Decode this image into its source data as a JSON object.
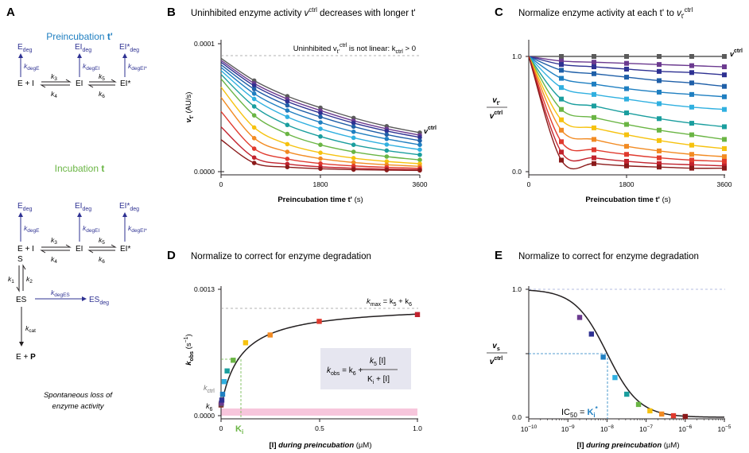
{
  "panels": {
    "A": {
      "label": "A"
    },
    "B": {
      "label": "B",
      "title": "Uninhibited enzyme activity ",
      "title_v": "v",
      "title_sup": "ctrl",
      "title_end": " decreases with longer t'"
    },
    "C": {
      "label": "C",
      "title": "Normalize enzyme activity at each t' to ",
      "title_v": "v",
      "title_sub": "t'",
      "title_sup": "ctrl"
    },
    "D": {
      "label": "D",
      "title": "Normalize to correct for enzyme degradation"
    },
    "E": {
      "label": "E",
      "title": "Normalize to correct for enzyme degradation"
    }
  },
  "scheme": {
    "preincubation_title": "Preincubation ",
    "preincubation_t": "t'",
    "incubation_title": "Incubation ",
    "incubation_t": "t",
    "E_deg": "E",
    "EI_deg": "EI",
    "EIstar_deg": "EI*",
    "ES_deg": "ES",
    "deg": "deg",
    "k": "k",
    "k_degE": "degE",
    "k_degEI": "degEI",
    "k_degEIstar": "degEI*",
    "k_degES": "degES",
    "k3": "3",
    "k4": "4",
    "k5": "5",
    "k6": "6",
    "k1": "1",
    "k2": "2",
    "kcat": "cat",
    "E_plus_I": "E + I",
    "EI": "EI",
    "EIstar": "EI*",
    "S": "S",
    "ES": "ES",
    "E_plus_P_E": "E + ",
    "P": "P",
    "footnote_line1": "Spontaneous loss of",
    "footnote_line2": "enzyme activity"
  },
  "colors": {
    "scheme_blue": "#2e3192",
    "preinc_blue": "#1f7fc1",
    "inc_green": "#6ab544",
    "series": [
      "#5b5b5b",
      "#6b3a8f",
      "#2e3192",
      "#1f5fa8",
      "#1f7fc1",
      "#30b0e0",
      "#1a9e9e",
      "#6ab544",
      "#f6c20f",
      "#f28b23",
      "#e03a2e",
      "#c2232e",
      "#8b1a1a"
    ],
    "pink_band": "#f7c6dc"
  },
  "chart_data": [
    {
      "id": "B",
      "type": "line",
      "xlabel": "Preincubation time t'",
      "xlabel_unit": "(s)",
      "ylabel": "v",
      "ylabel_sub": "t'",
      "ylabel_unit": "(AU/s)",
      "xlim": [
        0,
        3600
      ],
      "ylim": [
        0,
        0.0001
      ],
      "x_ticks": [
        "0",
        "1800",
        "3600"
      ],
      "y_ticks": [
        "0.0000",
        "0.0001"
      ],
      "annotation": "Uninhibited v",
      "annotation_sub": "t'",
      "annotation_sup": "ctrl",
      "annotation_tail": " is not linear: k",
      "annotation_ksub": "ctrl",
      "annotation_end": " > 0",
      "series_label": "v",
      "series_label_sup": "ctrl",
      "x": [
        0,
        600,
        1200,
        1800,
        2400,
        3000,
        3600
      ],
      "series": [
        {
          "values": [
            8.85e-05,
            7.12e-05,
            5.9e-05,
            5e-05,
            4.2e-05,
            3.55e-05,
            3.05e-05
          ]
        },
        {
          "values": [
            8.7e-05,
            6.9e-05,
            5.68e-05,
            4.78e-05,
            3.98e-05,
            3.35e-05,
            2.85e-05
          ]
        },
        {
          "values": [
            8.55e-05,
            6.72e-05,
            5.48e-05,
            4.58e-05,
            3.8e-05,
            3.18e-05,
            2.68e-05
          ]
        },
        {
          "values": [
            8.35e-05,
            6.45e-05,
            5.18e-05,
            4.28e-05,
            3.52e-05,
            2.9e-05,
            2.42e-05
          ]
        },
        {
          "values": [
            8.15e-05,
            6.1e-05,
            4.78e-05,
            3.85e-05,
            3.12e-05,
            2.56e-05,
            2.1e-05
          ]
        },
        {
          "values": [
            7.9e-05,
            5.68e-05,
            4.28e-05,
            3.35e-05,
            2.65e-05,
            2.12e-05,
            1.72e-05
          ]
        },
        {
          "values": [
            7.6e-05,
            5.1e-05,
            3.65e-05,
            2.75e-05,
            2.1e-05,
            1.65e-05,
            1.32e-05
          ]
        },
        {
          "values": [
            7.25e-05,
            4.4e-05,
            2.95e-05,
            2.1e-05,
            1.55e-05,
            1.18e-05,
            9.2e-06
          ]
        },
        {
          "values": [
            6.6e-05,
            3.45e-05,
            2.15e-05,
            1.48e-05,
            1.06e-05,
            8e-06,
            6.2e-06
          ]
        },
        {
          "values": [
            5.8e-05,
            2.62e-05,
            1.55e-05,
            1.02e-05,
            7.2e-06,
            5.4e-06,
            4.2e-06
          ]
        },
        {
          "values": [
            4.7e-05,
            1.8e-05,
            1e-05,
            6.4e-06,
            4.5e-06,
            3.4e-06,
            2.6e-06
          ]
        },
        {
          "values": [
            3.5e-05,
            1.1e-05,
            6e-06,
            3.8e-06,
            2.7e-06,
            2e-06,
            1.6e-06
          ]
        },
        {
          "values": [
            2.5e-05,
            6.8e-06,
            3.6e-06,
            2.3e-06,
            1.6e-06,
            1.2e-06,
            1e-06
          ]
        }
      ]
    },
    {
      "id": "C",
      "type": "line",
      "xlabel": "Preincubation time t'",
      "xlabel_unit": "(s)",
      "ylabel_num": "v",
      "ylabel_num_sub": "t'",
      "ylabel_den": "v",
      "ylabel_den_sup": "ctrl",
      "xlim": [
        0,
        3600
      ],
      "ylim": [
        0,
        1.0
      ],
      "x_ticks": [
        "0",
        "1800",
        "3600"
      ],
      "y_ticks": [
        "0.0",
        "1.0"
      ],
      "series_label": "v",
      "series_label_sup": "ctrl",
      "x": [
        600,
        1200,
        1800,
        2400,
        3000,
        3600
      ],
      "series": [
        {
          "values": [
            1.0,
            1.0,
            1.0,
            1.0,
            1.0,
            1.0
          ]
        },
        {
          "values": [
            0.96,
            0.95,
            0.94,
            0.93,
            0.92,
            0.91
          ]
        },
        {
          "values": [
            0.93,
            0.91,
            0.89,
            0.87,
            0.86,
            0.84
          ]
        },
        {
          "values": [
            0.88,
            0.85,
            0.82,
            0.79,
            0.77,
            0.74
          ]
        },
        {
          "values": [
            0.81,
            0.76,
            0.72,
            0.69,
            0.67,
            0.65
          ]
        },
        {
          "values": [
            0.73,
            0.67,
            0.63,
            0.59,
            0.56,
            0.54
          ]
        },
        {
          "values": [
            0.63,
            0.57,
            0.51,
            0.46,
            0.42,
            0.39
          ]
        },
        {
          "values": [
            0.54,
            0.47,
            0.41,
            0.36,
            0.32,
            0.28
          ]
        },
        {
          "values": [
            0.45,
            0.38,
            0.32,
            0.27,
            0.23,
            0.2
          ]
        },
        {
          "values": [
            0.36,
            0.28,
            0.22,
            0.18,
            0.15,
            0.13
          ]
        },
        {
          "values": [
            0.26,
            0.19,
            0.15,
            0.12,
            0.1,
            0.09
          ]
        },
        {
          "values": [
            0.17,
            0.12,
            0.09,
            0.07,
            0.06,
            0.05
          ]
        },
        {
          "values": [
            0.1,
            0.07,
            0.05,
            0.04,
            0.03,
            0.03
          ]
        }
      ]
    },
    {
      "id": "D",
      "type": "scatter",
      "xlabel": "[I]",
      "xlabel_italic": " during preincubation",
      "xlabel_unit": " (µM)",
      "ylabel": "k",
      "ylabel_sub": "obs",
      "ylabel_unit": " (s",
      "xlim": [
        0,
        1.0
      ],
      "ylim": [
        0,
        0.0013
      ],
      "x_ticks": [
        "0",
        "0.5",
        "1.0"
      ],
      "y_ticks": [
        "0.0000",
        "0.0013"
      ],
      "kmax_label": "k",
      "kmax_sub": "max",
      "kmax_eq": " = k",
      "kmax_5": "5",
      "kmax_plus": " + k",
      "kmax_6": "6",
      "kctrl_label": "k",
      "kctrl_sub": "ctrl",
      "k6_label": "k",
      "k6_sub": "6",
      "Ki_label": "K",
      "Ki_sub": "i",
      "eq_k": "k",
      "eq_obs": "obs",
      "eq_mid": " = k",
      "eq_6": "6",
      "eq_plus": " + ",
      "eq_num_k": "k",
      "eq_num_5": "5",
      "eq_num_I": " [I]",
      "eq_den_K": "K",
      "eq_den_i": "i",
      "eq_den_I": " + [I]",
      "k6_value": 9e-05,
      "kmax_value": 0.00114,
      "Ki_value": 0.1,
      "x": [
        0,
        0.001,
        0.002,
        0.004,
        0.008,
        0.016,
        0.031,
        0.062,
        0.125,
        0.25,
        0.5,
        1.0
      ],
      "y": [
        0.00011,
        0.00012,
        0.00013,
        0.00016,
        0.00022,
        0.00035,
        0.00046,
        0.00057,
        0.00075,
        0.00083,
        0.00097,
        0.00104
      ]
    },
    {
      "id": "E",
      "type": "scatter",
      "xlabel": "[I]",
      "xlabel_italic": " during preincubation",
      "xlabel_unit": " (µM)",
      "ylabel_num": "v",
      "ylabel_num_sub": "s",
      "ylabel_den": "v",
      "ylabel_den_sup": "ctrl",
      "xlim": [
        1e-10,
        1e-05
      ],
      "ylim": [
        0,
        1.0
      ],
      "x_scale": "log",
      "y_ticks": [
        "0.0",
        "0.5",
        "1.0"
      ],
      "x_ticks": [
        "10",
        "10",
        "10",
        "10",
        "10",
        "10"
      ],
      "x_ticks_exp": [
        "−10",
        "−9",
        "−8",
        "−7",
        "−6",
        "−5"
      ],
      "ic50_label": "IC",
      "ic50_sub": "50",
      "ic50_eq": " = ",
      "ic50_K": "K",
      "ic50_Ksub": "i",
      "ic50_Ksup": "*",
      "IC50": 1e-08,
      "x": [
        2e-09,
        4e-09,
        8e-09,
        1.6e-08,
        3.2e-08,
        6.4e-08,
        1.25e-07,
        2.5e-07,
        5e-07,
        1e-06
      ],
      "y": [
        0.78,
        0.65,
        0.47,
        0.31,
        0.18,
        0.1,
        0.05,
        0.025,
        0.012,
        0.006
      ]
    }
  ]
}
